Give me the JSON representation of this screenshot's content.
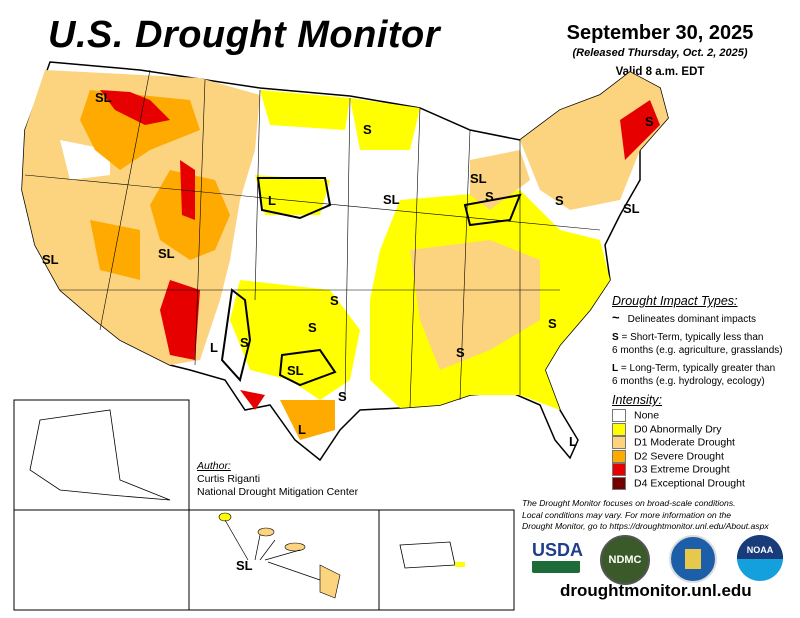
{
  "header": {
    "title": "U.S. Drought Monitor",
    "date": "September 30, 2025",
    "released": "(Released Thursday, Oct. 2, 2025)",
    "valid": "Valid 8 a.m. EDT"
  },
  "map": {
    "labels": [
      "SL",
      "S",
      "SL",
      "S",
      "S",
      "L",
      "SL",
      "S",
      "SL",
      "SL",
      "SL",
      "S",
      "S",
      "S",
      "L",
      "S",
      "S",
      "SL",
      "S",
      "L",
      "L",
      "SL"
    ]
  },
  "legend": {
    "impact_title": "Drought Impact Types:",
    "delineates": "Delineates dominant impacts",
    "short_key": "S",
    "short_text": " = Short-Term, typically less than",
    "short_text2": "6 months (e.g. agriculture, grasslands)",
    "long_key": "L",
    "long_text": " = Long-Term, typically greater than",
    "long_text2": "6 months (e.g. hydrology, ecology)",
    "intensity_title": "Intensity:",
    "levels": [
      {
        "label": "None",
        "color": "#ffffff"
      },
      {
        "label": "D0 Abnormally Dry",
        "color": "#ffff00"
      },
      {
        "label": "D1 Moderate Drought",
        "color": "#fcd37f"
      },
      {
        "label": "D2 Severe Drought",
        "color": "#ffaa00"
      },
      {
        "label": "D3 Extreme Drought",
        "color": "#e60000"
      },
      {
        "label": "D4 Exceptional Drought",
        "color": "#730000"
      }
    ]
  },
  "author": {
    "heading": "Author:",
    "name": "Curtis Riganti",
    "org": "National Drought Mitigation Center"
  },
  "note": {
    "line1": "The Drought Monitor focuses on broad-scale conditions.",
    "line2": "Local conditions may vary. For more information on the",
    "line3": "Drought Monitor, go to https://droughtmonitor.unl.edu/About.aspx"
  },
  "logos": {
    "usda": "USDA",
    "ndmc": "NDMC",
    "noaa": "NOAA"
  },
  "url": "droughtmonitor.unl.edu"
}
